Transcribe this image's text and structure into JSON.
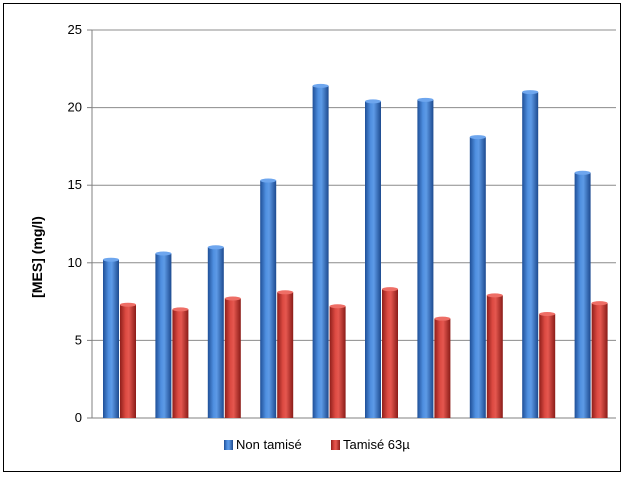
{
  "chart_data": {
    "type": "bar",
    "ylabel": "[MES] (mg/l)",
    "xlabel": "",
    "title": "",
    "ylim": [
      0,
      25
    ],
    "yticks": [
      0,
      5,
      10,
      15,
      20,
      25
    ],
    "grid": true,
    "legend_position": "bottom",
    "categories": [
      "",
      "",
      "",
      "",
      "",
      "",
      "",
      "",
      "",
      ""
    ],
    "series": [
      {
        "name": "Non tamisé",
        "color": "#3f7fd2",
        "values": [
          10.2,
          10.6,
          11.0,
          15.3,
          21.4,
          20.4,
          20.5,
          18.1,
          21.0,
          15.8
        ]
      },
      {
        "name": "Tamisé 63µ",
        "color": "#d43b34",
        "values": [
          7.3,
          7.0,
          7.7,
          8.1,
          7.2,
          8.3,
          6.4,
          7.9,
          6.7,
          7.4
        ]
      }
    ]
  }
}
